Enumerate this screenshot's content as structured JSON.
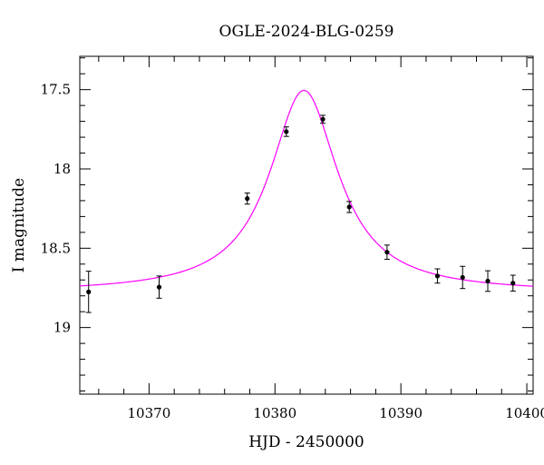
{
  "chart_data": {
    "type": "scatter",
    "title": "OGLE-2024-BLG-0259",
    "xlabel": "HJD - 2450000",
    "ylabel": "I magnitude",
    "xlim": [
      10364.5,
      10400.5
    ],
    "ylim": [
      19.42,
      17.29
    ],
    "y_inverted": true,
    "x_ticks": [
      10370,
      10380,
      10390,
      10400
    ],
    "x_tick_labels": [
      "10370",
      "10380",
      "10390",
      "10400"
    ],
    "y_ticks": [
      17.5,
      18,
      18.5,
      19
    ],
    "y_tick_labels": [
      "17.5",
      "18",
      "18.5",
      "19"
    ],
    "grid": false,
    "colors": {
      "model": "#ff00ff",
      "points": "#000000"
    },
    "series": [
      {
        "kind": "errorbar-points",
        "x": [
          10365.2,
          10370.8,
          10377.8,
          10380.9,
          10383.8,
          10385.9,
          10388.9,
          10392.9,
          10394.9,
          10396.9,
          10398.9
        ],
        "y": [
          18.775,
          18.745,
          18.187,
          17.765,
          17.687,
          18.24,
          18.525,
          18.675,
          18.684,
          18.707,
          18.72
        ],
        "err": [
          0.13,
          0.07,
          0.035,
          0.03,
          0.025,
          0.035,
          0.045,
          0.045,
          0.07,
          0.065,
          0.05
        ]
      },
      {
        "kind": "model-curve",
        "t0": 10382.3,
        "baseline": 18.78,
        "peak": 17.505,
        "width": 3.3
      }
    ]
  }
}
